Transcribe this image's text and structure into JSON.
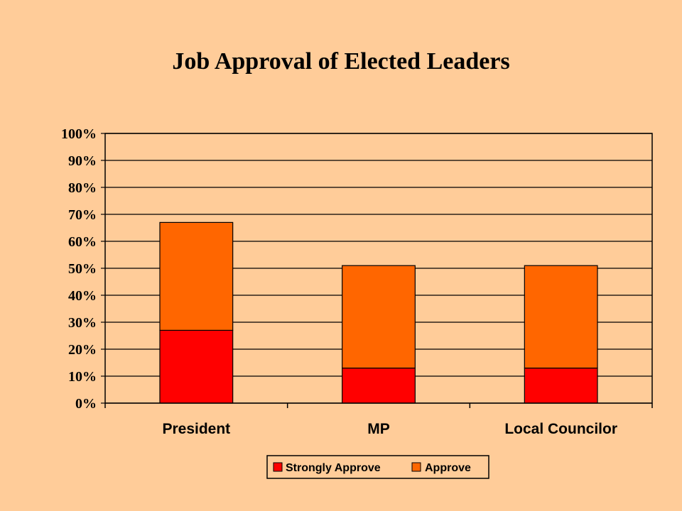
{
  "chart_data": {
    "type": "bar",
    "stacked": true,
    "title": "Job Approval of Elected Leaders",
    "xlabel": "",
    "ylabel": "",
    "categories": [
      "President",
      "MP",
      "Local Councilor"
    ],
    "series": [
      {
        "name": "Strongly Approve",
        "color": "#FF0000",
        "values": [
          27,
          13,
          13
        ]
      },
      {
        "name": "Approve",
        "color": "#FF6600",
        "values": [
          40,
          38,
          38
        ]
      }
    ],
    "ylim": [
      0,
      100
    ],
    "yticks": [
      "0%",
      "10%",
      "20%",
      "30%",
      "40%",
      "50%",
      "60%",
      "70%",
      "80%",
      "90%",
      "100%"
    ],
    "grid": true,
    "legend_position": "bottom",
    "background_color": "#FFCC99"
  }
}
